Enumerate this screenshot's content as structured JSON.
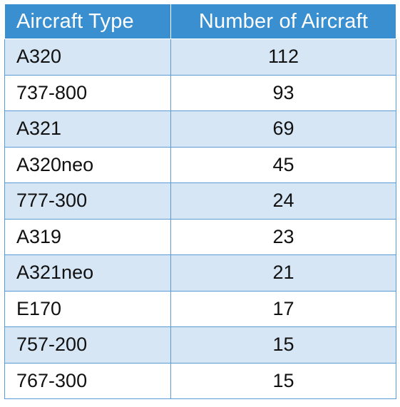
{
  "table": {
    "headers": [
      "Aircraft Type",
      "Number of Aircraft"
    ],
    "rows": [
      [
        "A320",
        "112"
      ],
      [
        "737-800",
        "93"
      ],
      [
        "A321",
        "69"
      ],
      [
        "A320neo",
        "45"
      ],
      [
        "777-300",
        "24"
      ],
      [
        "A319",
        "23"
      ],
      [
        "A321neo",
        "21"
      ],
      [
        "E170",
        "17"
      ],
      [
        "757-200",
        "15"
      ],
      [
        "767-300",
        "15"
      ]
    ]
  },
  "colors": {
    "header_bg": "#3a8fd0",
    "header_text": "#ffffff",
    "band_row_bg": "#d6e6f5",
    "plain_row_bg": "#ffffff",
    "border": "#5b9bd5"
  }
}
